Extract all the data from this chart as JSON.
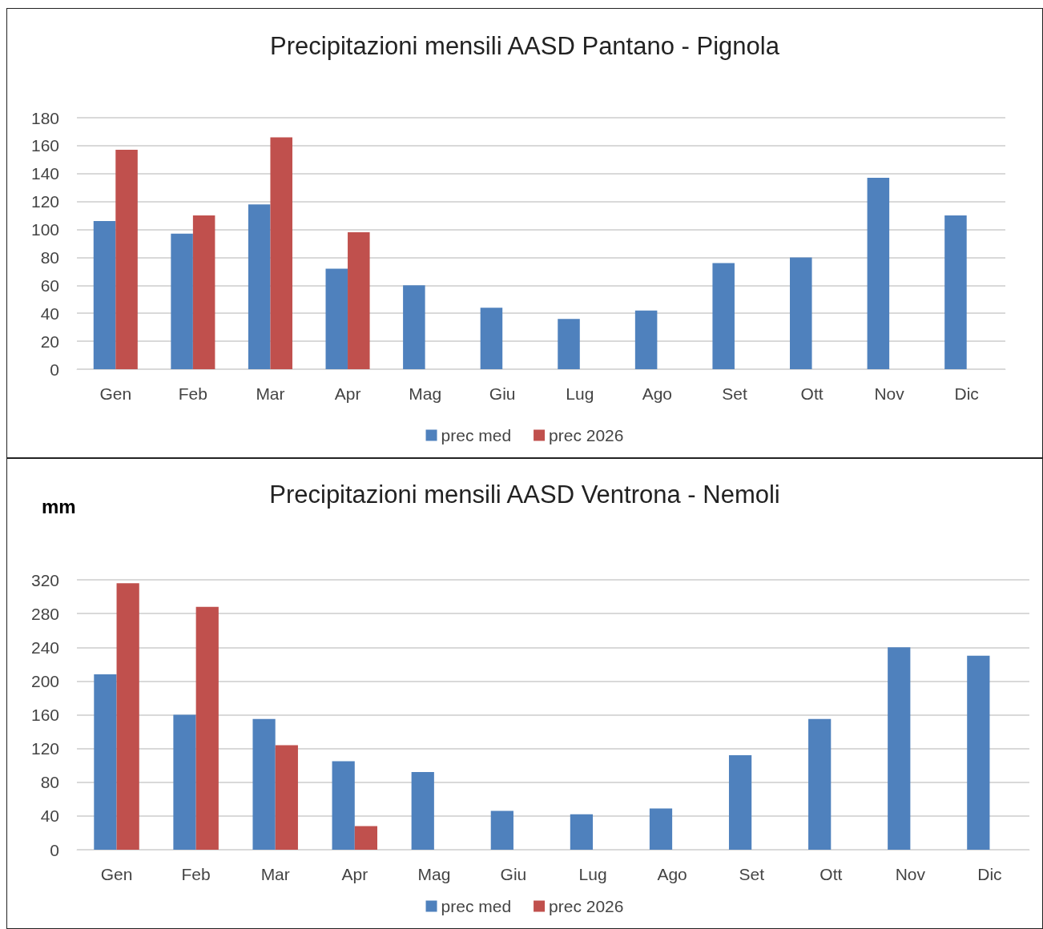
{
  "chart_data": [
    {
      "type": "bar",
      "title": "Precipitazioni mensili AASD Pantano - Pignola",
      "categories": [
        "Gen",
        "Feb",
        "Mar",
        "Apr",
        "Mag",
        "Giu",
        "Lug",
        "Ago",
        "Set",
        "Ott",
        "Nov",
        "Dic"
      ],
      "series": [
        {
          "name": "prec med",
          "color": "#4f81bd",
          "values": [
            106,
            97,
            118,
            72,
            60,
            44,
            36,
            42,
            76,
            80,
            137,
            110
          ]
        },
        {
          "name": "prec 2026",
          "color": "#c0504d",
          "values": [
            157,
            110,
            166,
            98,
            null,
            null,
            null,
            null,
            null,
            null,
            null,
            null
          ]
        }
      ],
      "ylim": [
        0,
        180
      ],
      "yticks": [
        0,
        20,
        40,
        60,
        80,
        100,
        120,
        140,
        160,
        180
      ],
      "grid": "y",
      "legend": "bottom"
    },
    {
      "type": "bar",
      "title": "Precipitazioni mensili AASD Ventrona - Nemoli",
      "ylabel": "mm",
      "categories": [
        "Gen",
        "Feb",
        "Mar",
        "Apr",
        "Mag",
        "Giu",
        "Lug",
        "Ago",
        "Set",
        "Ott",
        "Nov",
        "Dic"
      ],
      "series": [
        {
          "name": "prec med",
          "color": "#4f81bd",
          "values": [
            208,
            160,
            155,
            105,
            92,
            46,
            42,
            49,
            112,
            155,
            240,
            230
          ]
        },
        {
          "name": "prec 2026",
          "color": "#c0504d",
          "values": [
            316,
            288,
            124,
            28,
            null,
            null,
            null,
            null,
            null,
            null,
            null,
            null
          ]
        }
      ],
      "ylim": [
        0,
        320
      ],
      "yticks": [
        0,
        40,
        80,
        120,
        160,
        200,
        240,
        280,
        320
      ],
      "grid": "y",
      "legend": "bottom"
    }
  ]
}
